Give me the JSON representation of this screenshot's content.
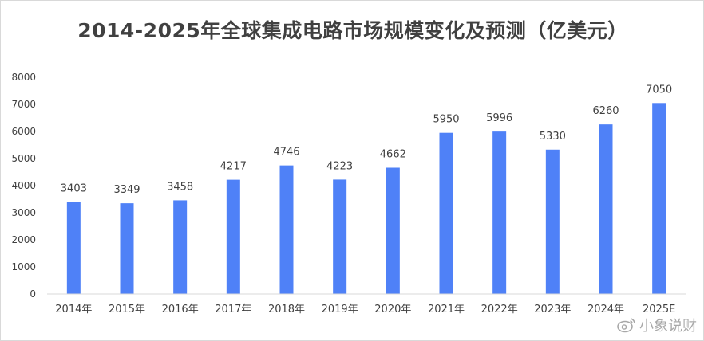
{
  "chart_data": {
    "type": "bar",
    "title": "2014-2025年全球集成电路市场规模变化及预测（亿美元）",
    "xlabel": "",
    "ylabel": "",
    "categories": [
      "2014年",
      "2015年",
      "2016年",
      "2017年",
      "2018年",
      "2019年",
      "2020年",
      "2021年",
      "2022年",
      "2023年",
      "2024年",
      "2025E"
    ],
    "values": [
      3403,
      3349,
      3458,
      4217,
      4746,
      4223,
      4662,
      5950,
      5996,
      5330,
      6260,
      7050
    ],
    "ylim": [
      0,
      8000
    ],
    "yticks": [
      0,
      1000,
      2000,
      3000,
      4000,
      5000,
      6000,
      7000,
      8000
    ],
    "grid": false,
    "data_labels": true,
    "bar_color": "#4f81f7",
    "axis_color": "#d9d9d9",
    "label_color": "#404040"
  },
  "watermark": {
    "icon": "weibo-icon",
    "text": "小象说财"
  }
}
